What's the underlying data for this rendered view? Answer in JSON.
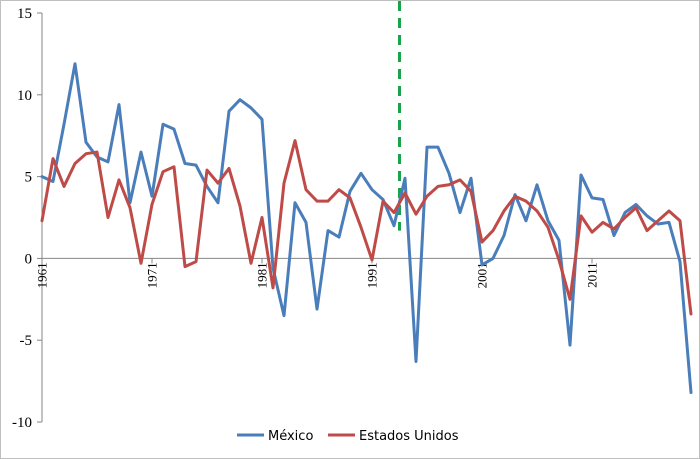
{
  "chart_data": {
    "type": "line",
    "title": "",
    "xlabel": "",
    "ylabel": "",
    "ylim": [
      -10,
      15
    ],
    "yticks": [
      15,
      10,
      5,
      0,
      -5,
      -10
    ],
    "xlim": [
      1961,
      2020
    ],
    "xticks": [
      1961,
      1971,
      1981,
      1991,
      2001,
      2011
    ],
    "grid": false,
    "legend_position": "bottom",
    "reference_line": {
      "x": 1993.5,
      "style": "dashed",
      "color": "#1aa34a"
    },
    "x": [
      1961,
      1962,
      1963,
      1964,
      1965,
      1966,
      1967,
      1968,
      1969,
      1970,
      1971,
      1972,
      1973,
      1974,
      1975,
      1976,
      1977,
      1978,
      1979,
      1980,
      1981,
      1982,
      1983,
      1984,
      1985,
      1986,
      1987,
      1988,
      1989,
      1990,
      1991,
      1992,
      1993,
      1994,
      1995,
      1996,
      1997,
      1998,
      1999,
      2000,
      2001,
      2002,
      2003,
      2004,
      2005,
      2006,
      2007,
      2008,
      2009,
      2010,
      2011,
      2012,
      2013,
      2014,
      2015,
      2016,
      2017,
      2018,
      2019,
      2020
    ],
    "series": [
      {
        "name": "México",
        "color": "#4a7ebb",
        "values": [
          5.0,
          4.7,
          8.2,
          11.9,
          7.1,
          6.2,
          5.9,
          9.4,
          3.4,
          6.5,
          3.8,
          8.2,
          7.9,
          5.8,
          5.7,
          4.4,
          3.4,
          9.0,
          9.7,
          9.2,
          8.5,
          -0.6,
          -3.5,
          3.4,
          2.2,
          -3.1,
          1.7,
          1.3,
          4.1,
          5.2,
          4.2,
          3.6,
          2.0,
          4.9,
          -6.3,
          6.8,
          6.8,
          5.2,
          2.8,
          4.9,
          -0.4,
          0.0,
          1.4,
          3.9,
          2.3,
          4.5,
          2.3,
          1.1,
          -5.3,
          5.1,
          3.7,
          3.6,
          1.4,
          2.8,
          3.3,
          2.6,
          2.1,
          2.2,
          -0.2,
          -8.2
        ]
      },
      {
        "name": "Estados Unidos",
        "color": "#be4b48",
        "values": [
          2.3,
          6.1,
          4.4,
          5.8,
          6.4,
          6.5,
          2.5,
          4.8,
          3.1,
          -0.3,
          3.3,
          5.3,
          5.6,
          -0.5,
          -0.2,
          5.4,
          4.6,
          5.5,
          3.2,
          -0.3,
          2.5,
          -1.8,
          4.6,
          7.2,
          4.2,
          3.5,
          3.5,
          4.2,
          3.7,
          1.9,
          -0.1,
          3.5,
          2.8,
          4.0,
          2.7,
          3.8,
          4.4,
          4.5,
          4.8,
          4.1,
          1.0,
          1.7,
          2.9,
          3.8,
          3.5,
          2.9,
          1.9,
          -0.1,
          -2.5,
          2.6,
          1.6,
          2.2,
          1.8,
          2.5,
          3.1,
          1.7,
          2.3,
          2.9,
          2.3,
          -3.4
        ]
      }
    ]
  }
}
